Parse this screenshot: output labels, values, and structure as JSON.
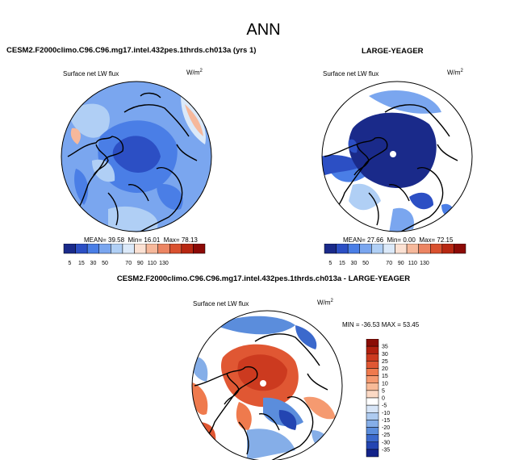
{
  "page": {
    "title": "ANN",
    "panel_top_left": {
      "title": "CESM2.F2000climo.C96.C96.mg17.intel.432pes.1thrds.ch013a (yrs 1)"
    },
    "panel_top_right": {
      "title": "LARGE-YEAGER"
    },
    "panel_bottom": {
      "title": "CESM2.F2000climo.C96.C96.mg17.intel.432pes.1thrds.ch013a - LARGE-YEAGER"
    },
    "variable_label": "Surface net LW flux",
    "units_base": "W/m",
    "units_exp": "2"
  },
  "chart_data": [
    {
      "type": "heatmap",
      "projection": "north-polar-stereographic",
      "title": "CESM2.F2000climo.C96.C96.mg17.intel.432pes.1thrds.ch013a (yrs 1)",
      "variable": "Surface net LW flux",
      "units": "W/m2",
      "stats": {
        "mean_label": "MEAN=",
        "mean": "39.58",
        "min_label": "Min=",
        "min": "16.01",
        "max_label": "Max=",
        "max": "78.13"
      },
      "colorbar": {
        "levels": [
          5,
          15,
          30,
          50,
          70,
          90,
          110,
          130
        ],
        "colors": [
          "#1a2a8a",
          "#2c4fc4",
          "#4a7ee6",
          "#7aa6ef",
          "#b0cff5",
          "#dbe9f9",
          "#fbe1d3",
          "#f6b89b",
          "#ec8563",
          "#d9512f",
          "#b72712",
          "#8c0a06"
        ]
      }
    },
    {
      "type": "heatmap",
      "projection": "north-polar-stereographic",
      "title": "LARGE-YEAGER",
      "variable": "Surface net LW flux",
      "units": "W/m2",
      "stats": {
        "mean_label": "MEAN=",
        "mean": "27.66",
        "min_label": "Min=",
        "min": "0.00",
        "max_label": "Max=",
        "max": "72.15"
      },
      "colorbar": {
        "levels": [
          5,
          15,
          30,
          50,
          70,
          90,
          110,
          130
        ],
        "colors": [
          "#1a2a8a",
          "#2c4fc4",
          "#4a7ee6",
          "#7aa6ef",
          "#b0cff5",
          "#dbe9f9",
          "#fbe1d3",
          "#f6b89b",
          "#ec8563",
          "#d9512f",
          "#b72712",
          "#8c0a06"
        ]
      }
    },
    {
      "type": "heatmap",
      "projection": "north-polar-stereographic",
      "title": "CESM2.F2000climo.C96.C96.mg17.intel.432pes.1thrds.ch013a - LARGE-YEAGER",
      "variable": "Surface net LW flux",
      "units": "W/m2",
      "stats": {
        "min_label": "MIN =",
        "min": "-36.53",
        "max_label": "MAX =",
        "max": "53.45"
      },
      "colorbar": {
        "levels": [
          35,
          30,
          25,
          20,
          15,
          10,
          5,
          0,
          -5,
          -10,
          -15,
          -20,
          -25,
          -30,
          -35
        ],
        "colors": [
          "#8a0d06",
          "#b1200f",
          "#cc3a1f",
          "#e05733",
          "#ef7a4d",
          "#f59a70",
          "#f8bb98",
          "#fbd9c4",
          "#ffffff",
          "#d7e5f7",
          "#aecbf0",
          "#85aee8",
          "#5b8ddc",
          "#3b69cc",
          "#2345b2",
          "#13238a"
        ]
      }
    }
  ]
}
